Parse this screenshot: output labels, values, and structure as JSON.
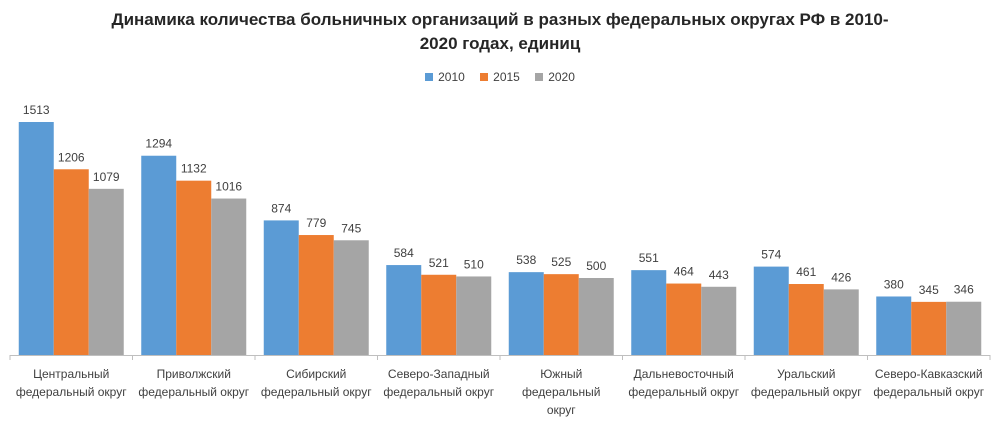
{
  "chart_data": {
    "type": "bar",
    "title_lines": [
      "Динамика количества больничных организаций в разных федеральных округах РФ в 2010-",
      "2020 годах, единиц"
    ],
    "categories": [
      [
        "Центральный",
        "федеральный округ"
      ],
      [
        "Приволжский",
        "федеральный округ"
      ],
      [
        "Сибирский",
        "федеральный округ"
      ],
      [
        "Северо-Западный",
        "федеральный округ"
      ],
      [
        "Южный",
        "федеральный",
        "округ"
      ],
      [
        "Дальневосточный",
        "федеральный округ"
      ],
      [
        "Уральский",
        "федеральный округ"
      ],
      [
        "Северо-Кавказский",
        "федеральный округ"
      ]
    ],
    "series": [
      {
        "name": "2010",
        "color": "#5B9BD5",
        "values": [
          1513,
          1294,
          874,
          584,
          538,
          551,
          574,
          380
        ]
      },
      {
        "name": "2015",
        "color": "#ED7D31",
        "values": [
          1206,
          1132,
          779,
          521,
          525,
          464,
          461,
          345
        ]
      },
      {
        "name": "2020",
        "color": "#A5A5A5",
        "values": [
          1079,
          1016,
          745,
          510,
          500,
          443,
          426,
          346
        ]
      }
    ],
    "xlabel": "",
    "ylabel": "",
    "ylim": [
      0,
      1600
    ],
    "legend_position": "top-center",
    "grid": false
  }
}
